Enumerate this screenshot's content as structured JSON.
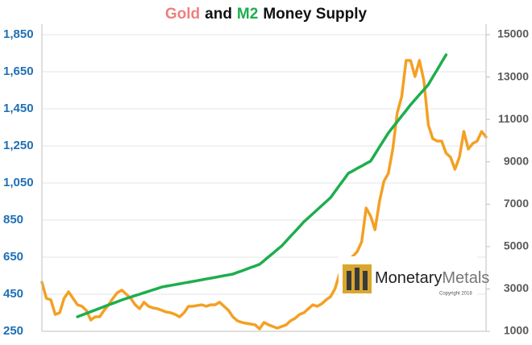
{
  "chart_data": {
    "type": "line",
    "title": [
      {
        "text": "Gold",
        "color": "#ef7f7f"
      },
      {
        "text": "and",
        "color": "#111111"
      },
      {
        "text": "M2",
        "color": "#1eae4e"
      },
      {
        "text": "Money Supply",
        "color": "#111111"
      }
    ],
    "ylim": [
      250,
      1850
    ],
    "yticks": [
      250,
      450,
      650,
      850,
      {
        "value": 1050,
        "label": "1,050"
      },
      {
        "value": 1250,
        "label": "1,250"
      },
      {
        "value": 1450,
        "label": "1,450"
      },
      {
        "value": 1650,
        "label": "1,650"
      },
      {
        "value": 1850,
        "label": "1,850"
      }
    ],
    "y2lim": [
      1000,
      15000
    ],
    "y2ticks": [
      1000,
      3000,
      5000,
      7000,
      9000,
      11000,
      13000,
      15000
    ],
    "ytick_color": "#1f6fb5",
    "grid": true,
    "series": [
      {
        "name": "Gold",
        "color": "#f4a024",
        "values": [
          515,
          428,
          420,
          341,
          350,
          428,
          463,
          428,
          393,
          385,
          363,
          311,
          328,
          328,
          363,
          393,
          428,
          459,
          472,
          450,
          428,
          393,
          372,
          407,
          385,
          376,
          372,
          363,
          354,
          350,
          341,
          328,
          350,
          385,
          385,
          389,
          393,
          385,
          393,
          393,
          407,
          385,
          363,
          328,
          307,
          298,
          293,
          289,
          285,
          263,
          298,
          285,
          276,
          267,
          276,
          285,
          307,
          320,
          341,
          350,
          372,
          393,
          385,
          398,
          420,
          437,
          480,
          559,
          602,
          637,
          654,
          680,
          733,
          915,
          872,
          798,
          950,
          1059,
          1102,
          1233,
          1428,
          1515,
          1711,
          1711,
          1624,
          1711,
          1602,
          1363,
          1289,
          1276,
          1276,
          1211,
          1189,
          1124,
          1189,
          1328,
          1233,
          1263,
          1276,
          1328,
          1298
        ]
      },
      {
        "name": "M2",
        "color": "#1eae4e",
        "axis": "y2",
        "values": [
          null,
          null,
          null,
          null,
          null,
          null,
          null,
          null,
          1685,
          1765,
          1845,
          1925,
          2005,
          2085,
          2165,
          2245,
          2320,
          2400,
          2480,
          2550,
          2615,
          2685,
          2750,
          2820,
          2885,
          2955,
          3020,
          3090,
          3130,
          3165,
          3205,
          3240,
          3280,
          3315,
          3355,
          3390,
          3430,
          3470,
          3505,
          3545,
          3585,
          3625,
          3660,
          3700,
          3780,
          3850,
          3930,
          4010,
          4080,
          4160,
          4330,
          4510,
          4680,
          4860,
          5030,
          5260,
          5490,
          5710,
          5940,
          6170,
          6360,
          6550,
          6740,
          6930,
          7120,
          7310,
          7600,
          7890,
          8170,
          8460,
          8570,
          8690,
          8800,
          8920,
          9030,
          9360,
          9700,
          10030,
          10360,
          10630,
          10890,
          11160,
          11420,
          11690,
          11930,
          12170,
          12400,
          12640,
          13000,
          13340,
          13700,
          14050,
          null,
          null,
          null,
          null,
          null,
          null,
          null,
          null,
          null
        ]
      }
    ],
    "watermark": {
      "name": [
        "Monetary",
        "Metals"
      ],
      "copyright": "Copyright 2018"
    }
  }
}
